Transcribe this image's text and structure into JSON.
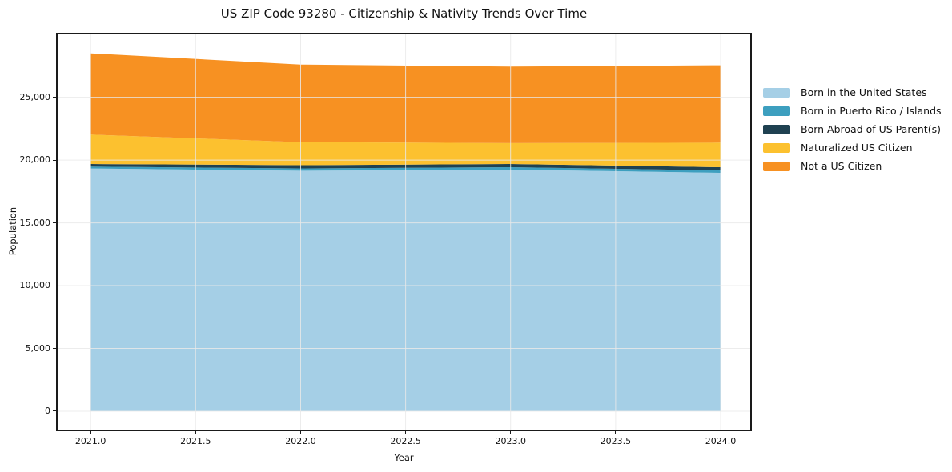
{
  "chart_data": {
    "type": "area",
    "stacked": true,
    "title": "US ZIP Code 93280 - Citizenship & Nativity Trends Over Time",
    "xlabel": "Year",
    "ylabel": "Population",
    "x": [
      2021,
      2022,
      2023,
      2024
    ],
    "series": [
      {
        "name": "Born in the United States",
        "color": "#A5CFE6",
        "values": [
          19330,
          19150,
          19240,
          18990
        ]
      },
      {
        "name": "Born in Puerto Rico / Islands",
        "color": "#3D9FBF",
        "values": [
          150,
          190,
          195,
          190
        ]
      },
      {
        "name": "Born Abroad of US Parent(s)",
        "color": "#1F4151",
        "values": [
          210,
          255,
          255,
          255
        ]
      },
      {
        "name": "Naturalized US Citizen",
        "color": "#FCC12F",
        "values": [
          2340,
          1835,
          1660,
          1955
        ]
      },
      {
        "name": "Not a US Citizen",
        "color": "#F79122",
        "values": [
          6470,
          6180,
          6090,
          6160
        ]
      }
    ],
    "totals": [
      28500,
      27610,
      27440,
      27550
    ],
    "xticks": {
      "values": [
        2021.0,
        2021.5,
        2022.0,
        2022.5,
        2023.0,
        2023.5,
        2024.0
      ],
      "labels": [
        "2021.0",
        "2021.5",
        "2022.0",
        "2022.5",
        "2023.0",
        "2023.5",
        "2024.0"
      ]
    },
    "yticks": {
      "values": [
        0,
        5000,
        10000,
        15000,
        20000,
        25000
      ],
      "labels": [
        "0",
        "5,000",
        "10,000",
        "15,000",
        "20,000",
        "25,000"
      ]
    },
    "xlim": [
      2020.843,
      2024.141
    ],
    "ylim": [
      -1466,
      30010
    ],
    "grid": true,
    "grid_color": "#e9e9e9",
    "axis_color": "#1a1a1a",
    "legend_position": "right-outside"
  }
}
